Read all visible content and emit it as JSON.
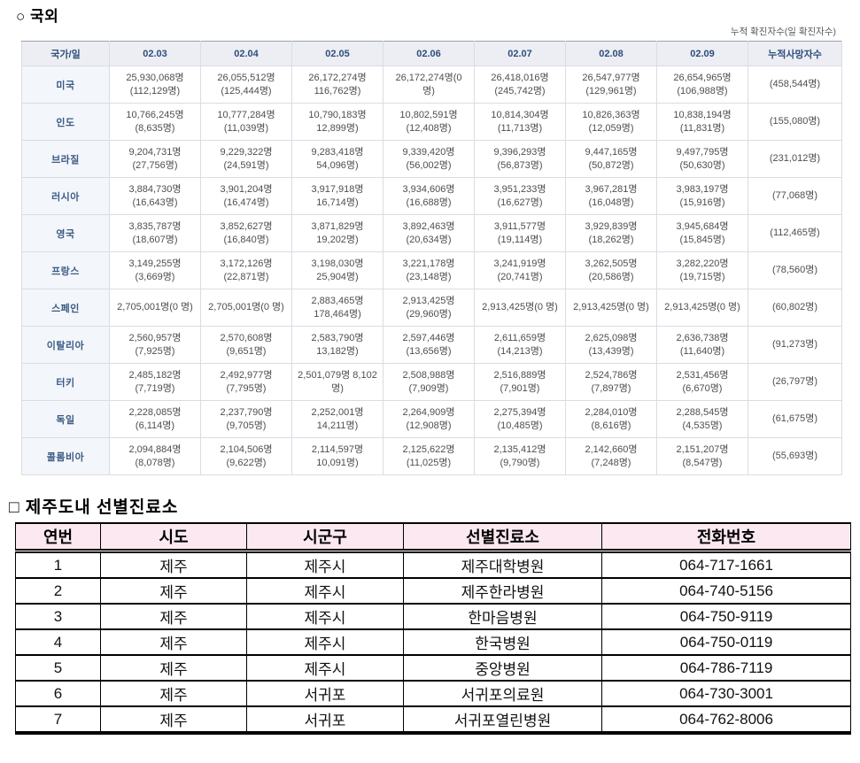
{
  "overseas": {
    "title": "○ 국외",
    "note": "누적 확진자수(일 확진자수)",
    "table": {
      "corner_header": "국가/일",
      "date_headers": [
        "02.03",
        "02.04",
        "02.05",
        "02.06",
        "02.07",
        "02.08",
        "02.09"
      ],
      "deaths_header": "누적사망자수",
      "rows": [
        {
          "country": "미국",
          "values": [
            "25,930,068명 (112,129명)",
            "26,055,512명 (125,444명)",
            "26,172,274명 116,762명)",
            "26,172,274명(0 명)",
            "26,418,016명 (245,742명)",
            "26,547,977명 (129,961명)",
            "26,654,965명 (106,988명)"
          ],
          "deaths": "(458,544명)"
        },
        {
          "country": "인도",
          "values": [
            "10,766,245명 (8,635명)",
            "10,777,284명 (11,039명)",
            "10,790,183명 12,899명)",
            "10,802,591명 (12,408명)",
            "10,814,304명 (11,713명)",
            "10,826,363명 (12,059명)",
            "10,838,194명 (11,831명)"
          ],
          "deaths": "(155,080명)"
        },
        {
          "country": "브라질",
          "values": [
            "9,204,731명 (27,756명)",
            "9,229,322명 (24,591명)",
            "9,283,418명 54,096명)",
            "9,339,420명 (56,002명)",
            "9,396,293명 (56,873명)",
            "9,447,165명 (50,872명)",
            "9,497,795명 (50,630명)"
          ],
          "deaths": "(231,012명)"
        },
        {
          "country": "러시아",
          "values": [
            "3,884,730명 (16,643명)",
            "3,901,204명 (16,474명)",
            "3,917,918명 16,714명)",
            "3,934,606명 (16,688명)",
            "3,951,233명 (16,627명)",
            "3,967,281명 (16,048명)",
            "3,983,197명 (15,916명)"
          ],
          "deaths": "(77,068명)"
        },
        {
          "country": "영국",
          "values": [
            "3,835,787명 (18,607명)",
            "3,852,627명 (16,840명)",
            "3,871,829명 19,202명)",
            "3,892,463명 (20,634명)",
            "3,911,577명 (19,114명)",
            "3,929,839명 (18,262명)",
            "3,945,684명 (15,845명)"
          ],
          "deaths": "(112,465명)"
        },
        {
          "country": "프랑스",
          "values": [
            "3,149,255명 (3,669명)",
            "3,172,126명 (22,871명)",
            "3,198,030명 25,904명)",
            "3,221,178명 (23,148명)",
            "3,241,919명 (20,741명)",
            "3,262,505명 (20,586명)",
            "3,282,220명 (19,715명)"
          ],
          "deaths": "(78,560명)"
        },
        {
          "country": "스페인",
          "values": [
            "2,705,001명(0 명)",
            "2,705,001명(0 명)",
            "2,883,465명 178,464명)",
            "2,913,425명 (29,960명)",
            "2,913,425명(0 명)",
            "2,913,425명(0 명)",
            "2,913,425명(0 명)"
          ],
          "deaths": "(60,802명)"
        },
        {
          "country": "이탈리아",
          "values": [
            "2,560,957명 (7,925명)",
            "2,570,608명 (9,651명)",
            "2,583,790명 13,182명)",
            "2,597,446명 (13,656명)",
            "2,611,659명 (14,213명)",
            "2,625,098명 (13,439명)",
            "2,636,738명 (11,640명)"
          ],
          "deaths": "(91,273명)"
        },
        {
          "country": "터키",
          "values": [
            "2,485,182명 (7,719명)",
            "2,492,977명 (7,795명)",
            "2,501,079명 8,102명)",
            "2,508,988명 (7,909명)",
            "2,516,889명 (7,901명)",
            "2,524,786명 (7,897명)",
            "2,531,456명 (6,670명)"
          ],
          "deaths": "(26,797명)"
        },
        {
          "country": "독일",
          "values": [
            "2,228,085명 (6,114명)",
            "2,237,790명 (9,705명)",
            "2,252,001명 14,211명)",
            "2,264,909명 (12,908명)",
            "2,275,394명 (10,485명)",
            "2,284,010명 (8,616명)",
            "2,288,545명 (4,535명)"
          ],
          "deaths": "(61,675명)"
        },
        {
          "country": "콜롬비아",
          "values": [
            "2,094,884명 (8,078명)",
            "2,104,506명 (9,622명)",
            "2,114,597명 10,091명)",
            "2,125,622명 (11,025명)",
            "2,135,412명 (9,790명)",
            "2,142,660명 (7,248명)",
            "2,151,207명 (8,547명)"
          ],
          "deaths": "(55,693명)"
        }
      ]
    }
  },
  "jeju": {
    "title": "□ 제주도내 선별진료소",
    "table": {
      "headers": [
        "연번",
        "시도",
        "시군구",
        "선별진료소",
        "전화번호"
      ],
      "rows": [
        [
          "1",
          "제주",
          "제주시",
          "제주대학병원",
          "064-717-1661"
        ],
        [
          "2",
          "제주",
          "제주시",
          "제주한라병원",
          "064-740-5156"
        ],
        [
          "3",
          "제주",
          "제주시",
          "한마음병원",
          "064-750-9119"
        ],
        [
          "4",
          "제주",
          "제주시",
          "한국병원",
          "064-750-0119"
        ],
        [
          "5",
          "제주",
          "제주시",
          "중앙병원",
          "064-786-7119"
        ],
        [
          "6",
          "제주",
          "서귀포",
          "서귀포의료원",
          "064-730-3001"
        ],
        [
          "7",
          "제주",
          "서귀포",
          "서귀포열린병원",
          "064-762-8006"
        ]
      ]
    }
  }
}
